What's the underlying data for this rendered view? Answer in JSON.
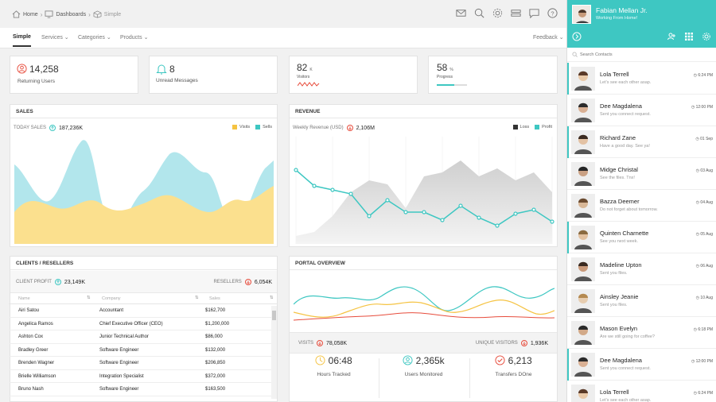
{
  "breadcrumb": {
    "home": "Home",
    "dashboards": "Dashboards",
    "current": "Simple"
  },
  "subnav": {
    "simple": "Simple",
    "services": "Services",
    "categories": "Categories",
    "products": "Products",
    "feedback": "Feedback"
  },
  "stats": {
    "returning": {
      "value": "14,258",
      "label": "Returning Users"
    },
    "unread": {
      "value": "8",
      "label": "Unread Messages"
    },
    "visitors": {
      "value": "82",
      "unit": "K",
      "label": "Visitors"
    },
    "progress": {
      "value": "58",
      "unit": "%",
      "label": "Progress",
      "level": 0.58
    }
  },
  "sales": {
    "title": "SALES",
    "today_label": "TODAY SALES",
    "today_value": "187,236K",
    "legend_visits": "Visits",
    "legend_sells": "Sells",
    "colors": {
      "visits": "#fbe08e",
      "sells": "#b2e6ec"
    }
  },
  "revenue": {
    "title": "REVENUE",
    "weekly_label": "Weekly Revenue (USD)",
    "weekly_value": "2,106M",
    "legend_loss": "Loss",
    "legend_profit": "Profit",
    "colors": {
      "loss": "#333333",
      "profit": "#3ec7c2"
    }
  },
  "clients": {
    "title": "CLIENTS / RESELLERS",
    "profit_label": "CLIENT PROFIT",
    "profit_value": "23,149K",
    "resellers_label": "RESELLERS",
    "resellers_value": "6,054K",
    "columns": [
      "Name",
      "Company",
      "Sales"
    ],
    "rows": [
      {
        "name": "Airi Satou",
        "company": "Accountant",
        "sales": "$162,700"
      },
      {
        "name": "Angelica Ramos",
        "company": "Chief Executive Officer (CEO)",
        "sales": "$1,200,000"
      },
      {
        "name": "Ashton Cox",
        "company": "Junior Technical Author",
        "sales": "$86,000"
      },
      {
        "name": "Bradley Greer",
        "company": "Software Engineer",
        "sales": "$132,000"
      },
      {
        "name": "Brenden Wagner",
        "company": "Software Engineer",
        "sales": "$206,850"
      },
      {
        "name": "Brielle Williamson",
        "company": "Integration Specialist",
        "sales": "$372,000"
      },
      {
        "name": "Bruno Nash",
        "company": "Software Engineer",
        "sales": "$163,500"
      }
    ]
  },
  "portal": {
    "title": "PORTAL OVERVIEW",
    "visits_label": "VISITS",
    "visits_value": "78,058K",
    "unique_label": "UNIQUE VISITORS",
    "unique_value": "1,936K",
    "hours_value": "06:48",
    "hours_label": "Hours Tracked",
    "users_value": "2,365k",
    "users_label": "Users Monitored",
    "transfers_value": "6,213",
    "transfers_label": "Transfers DOne"
  },
  "sidebar": {
    "user_name": "Fabian Mellan Jr.",
    "user_status": "Working From Home!",
    "search_placeholder": "Search Contacts",
    "accent": "#3ec7c2",
    "contacts": [
      {
        "name": "Lola Terrell",
        "msg": "Let's see each other asap.",
        "time": "6:24 PM"
      },
      {
        "name": "Dee Magdalena",
        "msg": "Sent you connect request.",
        "time": "12:00 PM"
      },
      {
        "name": "Richard Zane",
        "msg": "Have a good day. See ya!",
        "time": "01 Sep"
      },
      {
        "name": "Midge Christal",
        "msg": "See the files. Tnx!",
        "time": "03 Aug"
      },
      {
        "name": "Bazza Deemer",
        "msg": "Do not forget about tomorrow.",
        "time": "04 Aug"
      },
      {
        "name": "Quinten Charnette",
        "msg": "See you next week.",
        "time": "05 Aug"
      },
      {
        "name": "Madeline Upton",
        "msg": "Sent you files.",
        "time": "06 Aug"
      },
      {
        "name": "Ainsley Jeanie",
        "msg": "Sent you files.",
        "time": "10 Aug"
      },
      {
        "name": "Mason Evelyn",
        "msg": "Are we still going for coffee?",
        "time": "6:18 PM"
      },
      {
        "name": "Dee Magdalena",
        "msg": "Sent you connect request.",
        "time": "12:00 PM"
      },
      {
        "name": "Lola Terrell",
        "msg": "Let's see each other asap.",
        "time": "6:24 PM"
      }
    ]
  }
}
